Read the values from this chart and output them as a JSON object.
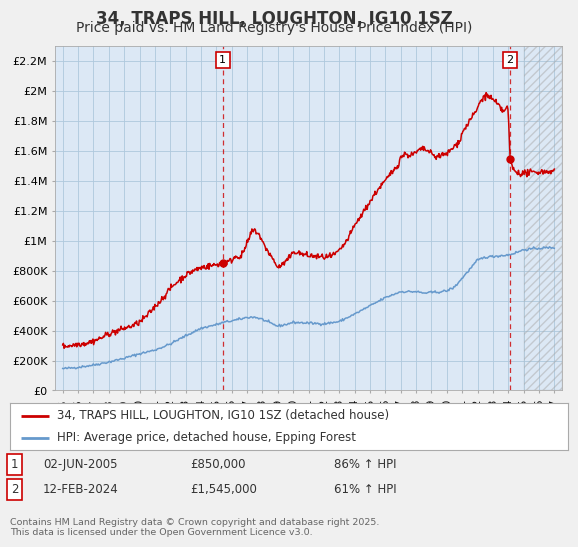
{
  "title": "34, TRAPS HILL, LOUGHTON, IG10 1SZ",
  "subtitle": "Price paid vs. HM Land Registry's House Price Index (HPI)",
  "ylim": [
    0,
    2300000
  ],
  "yticks": [
    0,
    200000,
    400000,
    600000,
    800000,
    1000000,
    1200000,
    1400000,
    1600000,
    1800000,
    2000000,
    2200000
  ],
  "ytick_labels": [
    "£0",
    "£200K",
    "£400K",
    "£600K",
    "£800K",
    "£1M",
    "£1.2M",
    "£1.4M",
    "£1.6M",
    "£1.8M",
    "£2M",
    "£2.2M"
  ],
  "xlim_start": 1994.5,
  "xlim_end": 2027.5,
  "xticks": [
    1995,
    1996,
    1997,
    1998,
    1999,
    2000,
    2001,
    2002,
    2003,
    2004,
    2005,
    2006,
    2007,
    2008,
    2009,
    2010,
    2011,
    2012,
    2013,
    2014,
    2015,
    2016,
    2017,
    2018,
    2019,
    2020,
    2021,
    2022,
    2023,
    2024,
    2025,
    2026,
    2027
  ],
  "red_line_color": "#cc0000",
  "blue_line_color": "#6699cc",
  "marker1_x": 2005.42,
  "marker1_y": 850000,
  "marker2_x": 2024.12,
  "marker2_y": 1545000,
  "vline1_x": 2005.42,
  "vline2_x": 2024.12,
  "hatch_start_x": 2025.0,
  "legend_red_label": "34, TRAPS HILL, LOUGHTON, IG10 1SZ (detached house)",
  "legend_blue_label": "HPI: Average price, detached house, Epping Forest",
  "note1_date": "02-JUN-2005",
  "note1_price": "£850,000",
  "note1_hpi": "86% ↑ HPI",
  "note2_date": "12-FEB-2024",
  "note2_price": "£1,545,000",
  "note2_hpi": "61% ↑ HPI",
  "footer": "Contains HM Land Registry data © Crown copyright and database right 2025.\nThis data is licensed under the Open Government Licence v3.0.",
  "background_color": "#f0f0f0",
  "plot_bg_color": "#dce8f5",
  "grid_color": "#aec8dd",
  "title_fontsize": 12,
  "subtitle_fontsize": 10
}
